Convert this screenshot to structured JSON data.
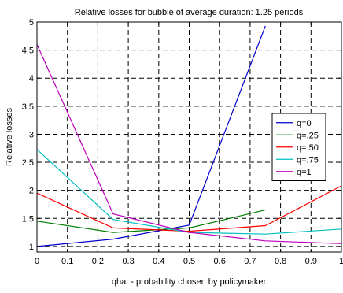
{
  "chart_data": {
    "type": "line",
    "title": "Relative losses for bubble of average duration: 1.25 periods",
    "xlabel": "qhat - probability chosen by policymaker",
    "ylabel": "Relative losses",
    "xlim": [
      0,
      1
    ],
    "ylim": [
      0.9,
      5
    ],
    "xticks": [
      "0",
      "0.1",
      "0.2",
      "0.3",
      "0.4",
      "0.5",
      "0.6",
      "0.7",
      "0.8",
      "0.9",
      "1"
    ],
    "yticks": [
      "1",
      "1.5",
      "2",
      "2.5",
      "3",
      "3.5",
      "4",
      "4.5",
      "5"
    ],
    "grid": true,
    "legend_position": "right",
    "series": [
      {
        "name": "q=0",
        "color": "#0000cc",
        "x": [
          0,
          0.25,
          0.5,
          0.75
        ],
        "y": [
          1.0,
          1.13,
          1.38,
          4.93
        ]
      },
      {
        "name": "q=.25",
        "color": "#008000",
        "x": [
          0,
          0.25,
          0.5,
          0.75
        ],
        "y": [
          1.45,
          1.25,
          1.33,
          1.65
        ]
      },
      {
        "name": "q=.50",
        "color": "#ff0000",
        "x": [
          0,
          0.25,
          0.5,
          0.75,
          1
        ],
        "y": [
          1.95,
          1.33,
          1.27,
          1.37,
          2.08
        ]
      },
      {
        "name": "q=.75",
        "color": "#00bfbf",
        "x": [
          0,
          0.25,
          0.5,
          0.75,
          1
        ],
        "y": [
          2.73,
          1.48,
          1.25,
          1.22,
          1.31
        ]
      },
      {
        "name": "q=1",
        "color": "#bf00bf",
        "x": [
          0,
          0.25,
          0.5,
          0.75,
          1
        ],
        "y": [
          4.6,
          1.58,
          1.25,
          1.1,
          1.05
        ]
      }
    ]
  }
}
